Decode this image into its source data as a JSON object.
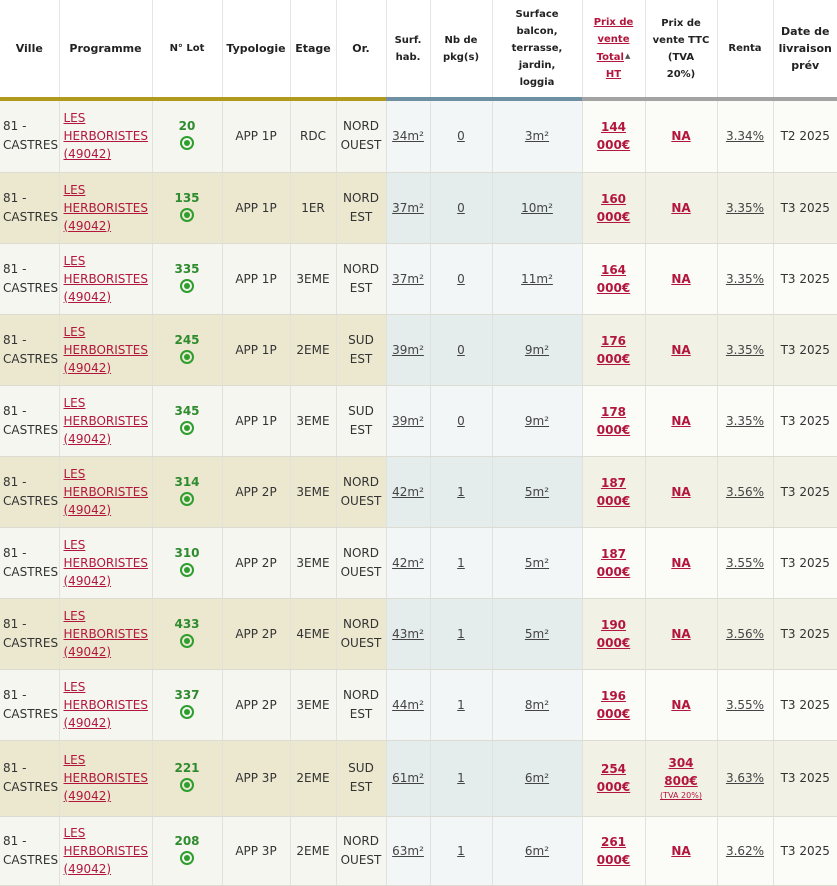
{
  "headers": {
    "ville": "Ville",
    "programme": "Programme",
    "lot": "N° Lot",
    "typologie": "Typologie",
    "etage": "Etage",
    "or": "Or.",
    "surf_l1": "Surf.",
    "surf_l2": "hab.",
    "pkg_l1": "Nb de",
    "pkg_l2": "pkg(s)",
    "ext_l1": "Surface",
    "ext_l2": "balcon,",
    "ext_l3": "terrasse,",
    "ext_l4": "jardin,",
    "ext_l5": "loggia",
    "ht_l1": "Prix de",
    "ht_l2": "vente",
    "ht_l3": "Total",
    "ht_l4": "HT",
    "ttc_l1": "Prix de",
    "ttc_l2": "vente TTC",
    "ttc_l3": "(TVA",
    "ttc_l4": "20%)",
    "renta": "Renta",
    "liv_l1": "Date de",
    "liv_l2": "livraison",
    "liv_l3": "prév"
  },
  "colors": {
    "bar_olive": "#b09a1e",
    "bar_steel": "#6f8fa3",
    "bar_grey": "#a3a3a3",
    "row_light": "#f6f6f0",
    "row_dark": "#ebe8cf",
    "mid_light": "#f3f6f6",
    "mid_dark": "#e5ecec",
    "price_light": "#fbfbf8",
    "price_dark": "#f2f1e6",
    "accent_red": "#b3163c",
    "status_green": "#2e9e2e"
  },
  "rows": [
    {
      "ville1": "81 -",
      "ville2": "CASTRES",
      "prog1": "LES",
      "prog2": "HERBORISTES",
      "prog3": "(49042)",
      "lot": "20",
      "status_icon": "available-dot-icon",
      "typo": "APP 1P",
      "etage": "RDC",
      "or1": "NORD",
      "or2": "OUEST",
      "surf": "34m²",
      "pkg": "0",
      "ext": "3m²",
      "ht1": "144",
      "ht2": "000€",
      "ttc1": "NA",
      "ttc2": "",
      "ttc_note": "",
      "renta": "3.34%",
      "livraison": "T2 2025"
    },
    {
      "ville1": "81 -",
      "ville2": "CASTRES",
      "prog1": "LES",
      "prog2": "HERBORISTES",
      "prog3": "(49042)",
      "lot": "135",
      "status_icon": "available-dot-icon",
      "typo": "APP 1P",
      "etage": "1ER",
      "or1": "NORD",
      "or2": "EST",
      "surf": "37m²",
      "pkg": "0",
      "ext": "10m²",
      "ht1": "160",
      "ht2": "000€",
      "ttc1": "NA",
      "ttc2": "",
      "ttc_note": "",
      "renta": "3.35%",
      "livraison": "T3 2025"
    },
    {
      "ville1": "81 -",
      "ville2": "CASTRES",
      "prog1": "LES",
      "prog2": "HERBORISTES",
      "prog3": "(49042)",
      "lot": "335",
      "status_icon": "available-dot-icon",
      "typo": "APP 1P",
      "etage": "3EME",
      "or1": "NORD",
      "or2": "EST",
      "surf": "37m²",
      "pkg": "0",
      "ext": "11m²",
      "ht1": "164",
      "ht2": "000€",
      "ttc1": "NA",
      "ttc2": "",
      "ttc_note": "",
      "renta": "3.35%",
      "livraison": "T3 2025"
    },
    {
      "ville1": "81 -",
      "ville2": "CASTRES",
      "prog1": "LES",
      "prog2": "HERBORISTES",
      "prog3": "(49042)",
      "lot": "245",
      "status_icon": "available-dot-icon",
      "typo": "APP 1P",
      "etage": "2EME",
      "or1": "SUD",
      "or2": "EST",
      "surf": "39m²",
      "pkg": "0",
      "ext": "9m²",
      "ht1": "176",
      "ht2": "000€",
      "ttc1": "NA",
      "ttc2": "",
      "ttc_note": "",
      "renta": "3.35%",
      "livraison": "T3 2025"
    },
    {
      "ville1": "81 -",
      "ville2": "CASTRES",
      "prog1": "LES",
      "prog2": "HERBORISTES",
      "prog3": "(49042)",
      "lot": "345",
      "status_icon": "available-dot-icon",
      "typo": "APP 1P",
      "etage": "3EME",
      "or1": "SUD",
      "or2": "EST",
      "surf": "39m²",
      "pkg": "0",
      "ext": "9m²",
      "ht1": "178",
      "ht2": "000€",
      "ttc1": "NA",
      "ttc2": "",
      "ttc_note": "",
      "renta": "3.35%",
      "livraison": "T3 2025"
    },
    {
      "ville1": "81 -",
      "ville2": "CASTRES",
      "prog1": "LES",
      "prog2": "HERBORISTES",
      "prog3": "(49042)",
      "lot": "314",
      "status_icon": "available-dot-icon",
      "typo": "APP 2P",
      "etage": "3EME",
      "or1": "NORD",
      "or2": "OUEST",
      "surf": "42m²",
      "pkg": "1",
      "ext": "5m²",
      "ht1": "187",
      "ht2": "000€",
      "ttc1": "NA",
      "ttc2": "",
      "ttc_note": "",
      "renta": "3.56%",
      "livraison": "T3 2025"
    },
    {
      "ville1": "81 -",
      "ville2": "CASTRES",
      "prog1": "LES",
      "prog2": "HERBORISTES",
      "prog3": "(49042)",
      "lot": "310",
      "status_icon": "available-dot-icon",
      "typo": "APP 2P",
      "etage": "3EME",
      "or1": "NORD",
      "or2": "OUEST",
      "surf": "42m²",
      "pkg": "1",
      "ext": "5m²",
      "ht1": "187",
      "ht2": "000€",
      "ttc1": "NA",
      "ttc2": "",
      "ttc_note": "",
      "renta": "3.55%",
      "livraison": "T3 2025"
    },
    {
      "ville1": "81 -",
      "ville2": "CASTRES",
      "prog1": "LES",
      "prog2": "HERBORISTES",
      "prog3": "(49042)",
      "lot": "433",
      "status_icon": "available-dot-icon",
      "typo": "APP 2P",
      "etage": "4EME",
      "or1": "NORD",
      "or2": "OUEST",
      "surf": "43m²",
      "pkg": "1",
      "ext": "5m²",
      "ht1": "190",
      "ht2": "000€",
      "ttc1": "NA",
      "ttc2": "",
      "ttc_note": "",
      "renta": "3.56%",
      "livraison": "T3 2025"
    },
    {
      "ville1": "81 -",
      "ville2": "CASTRES",
      "prog1": "LES",
      "prog2": "HERBORISTES",
      "prog3": "(49042)",
      "lot": "337",
      "status_icon": "available-dot-icon",
      "typo": "APP 2P",
      "etage": "3EME",
      "or1": "NORD",
      "or2": "EST",
      "surf": "44m²",
      "pkg": "1",
      "ext": "8m²",
      "ht1": "196",
      "ht2": "000€",
      "ttc1": "NA",
      "ttc2": "",
      "ttc_note": "",
      "renta": "3.55%",
      "livraison": "T3 2025"
    },
    {
      "ville1": "81 -",
      "ville2": "CASTRES",
      "prog1": "LES",
      "prog2": "HERBORISTES",
      "prog3": "(49042)",
      "lot": "221",
      "status_icon": "available-dot-icon",
      "typo": "APP 3P",
      "etage": "2EME",
      "or1": "SUD",
      "or2": "EST",
      "surf": "61m²",
      "pkg": "1",
      "ext": "6m²",
      "ht1": "254",
      "ht2": "000€",
      "ttc1": "304",
      "ttc2": "800€",
      "ttc_note": "(TVA 20%)",
      "renta": "3.63%",
      "livraison": "T3 2025"
    },
    {
      "ville1": "81 -",
      "ville2": "CASTRES",
      "prog1": "LES",
      "prog2": "HERBORISTES",
      "prog3": "(49042)",
      "lot": "208",
      "status_icon": "available-dot-icon",
      "typo": "APP 3P",
      "etage": "2EME",
      "or1": "NORD",
      "or2": "OUEST",
      "surf": "63m²",
      "pkg": "1",
      "ext": "6m²",
      "ht1": "261",
      "ht2": "000€",
      "ttc1": "NA",
      "ttc2": "",
      "ttc_note": "",
      "renta": "3.62%",
      "livraison": "T3 2025"
    }
  ]
}
